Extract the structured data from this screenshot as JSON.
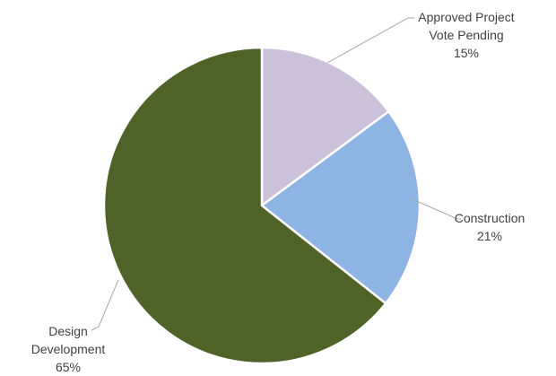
{
  "chart_data": {
    "type": "pie",
    "title": "",
    "legend": "none",
    "start_angle_deg": 0,
    "direction": "clockwise",
    "slices": [
      {
        "label_lines": [
          "Approved Project",
          "Vote Pending"
        ],
        "value_label": "15%",
        "value": 15,
        "color": "#ccc1da"
      },
      {
        "label_lines": [
          "Construction"
        ],
        "value_label": "21%",
        "value": 21,
        "color": "#8eb4e3"
      },
      {
        "label_lines": [
          "Design",
          "Development"
        ],
        "value_label": "65%",
        "value": 65,
        "color": "#4f6228"
      }
    ]
  }
}
